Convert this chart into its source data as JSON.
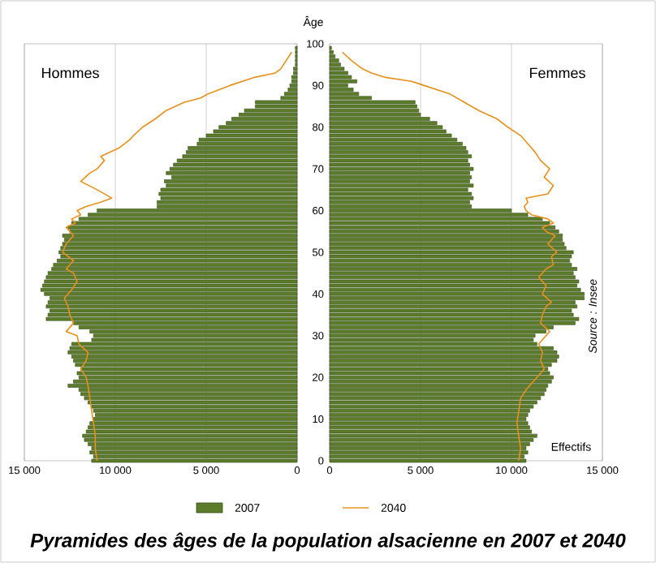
{
  "chart_data": [
    {
      "type": "bar",
      "orientation": "horizontal",
      "title": "Pyramides des âges de la population alsacienne en 2007 et 2040",
      "annotations": [
        "Hommes"
      ],
      "legend": "bottom",
      "grid": "x",
      "tick_labels": "x",
      "xlim": [
        15000,
        0
      ],
      "xticks": [
        {
          "value": 15000,
          "label": "15 000"
        },
        {
          "value": 10000,
          "label": "10 000"
        },
        {
          "value": 5000,
          "label": "5 000"
        },
        0
      ],
      "ylim": [
        0,
        100
      ],
      "yticks": [
        0,
        10,
        20,
        30,
        40,
        50,
        60,
        70,
        80,
        90,
        100
      ],
      "x": [
        0,
        1,
        2,
        3,
        4,
        5,
        6,
        7,
        8,
        9,
        10,
        11,
        12,
        13,
        14,
        15,
        16,
        17,
        18,
        19,
        20,
        21,
        22,
        23,
        24,
        25,
        26,
        27,
        28,
        29,
        30,
        31,
        32,
        33,
        34,
        35,
        36,
        37,
        38,
        39,
        40,
        41,
        42,
        43,
        44,
        45,
        46,
        47,
        48,
        49,
        50,
        51,
        52,
        53,
        54,
        55,
        56,
        57,
        58,
        59,
        60,
        61,
        62,
        63,
        64,
        65,
        66,
        67,
        68,
        69,
        70,
        71,
        72,
        73,
        74,
        75,
        76,
        77,
        78,
        79,
        80,
        81,
        82,
        83,
        84,
        85,
        86,
        87,
        88,
        89,
        90,
        91,
        92,
        93,
        94,
        95,
        96,
        97,
        98,
        99
      ],
      "series": [
        {
          "name": "2007",
          "color": "#5b7d2a",
          "values": [
            11300,
            11200,
            11400,
            11300,
            11500,
            11700,
            11800,
            11600,
            11500,
            11400,
            11200,
            11100,
            11200,
            11300,
            11500,
            11700,
            11900,
            12000,
            12600,
            12300,
            12000,
            12100,
            11900,
            12200,
            12300,
            12400,
            12600,
            12500,
            12400,
            11300,
            11200,
            11400,
            12000,
            12300,
            13800,
            13700,
            13600,
            13800,
            13700,
            13600,
            13900,
            14100,
            14000,
            13900,
            13800,
            13700,
            13500,
            13400,
            13200,
            13000,
            13100,
            13000,
            12900,
            12800,
            12900,
            12500,
            12600,
            12400,
            12000,
            11500,
            11000,
            7700,
            7700,
            7500,
            7600,
            7500,
            7200,
            7300,
            6900,
            7200,
            7000,
            6800,
            6600,
            6300,
            6100,
            6000,
            5500,
            5400,
            5000,
            4600,
            4300,
            3900,
            3600,
            3200,
            2900,
            2300,
            2300,
            900,
            700,
            500,
            400,
            300,
            300,
            200,
            200,
            100,
            100,
            100,
            100,
            100
          ]
        },
        {
          "name": "2040",
          "type": "line",
          "color": "#e8901c",
          "x": [
            0,
            3,
            6,
            9,
            12,
            15,
            18,
            20,
            22,
            24,
            26,
            28,
            30,
            31,
            33,
            35,
            37,
            39,
            41,
            43,
            45,
            46,
            48,
            50,
            52,
            54,
            56,
            57,
            58,
            59,
            60,
            61,
            62,
            63,
            65,
            67,
            69,
            70,
            72,
            73,
            75,
            76,
            77,
            78,
            80,
            82,
            84,
            86,
            87,
            88,
            90,
            92,
            93,
            94,
            96,
            98
          ],
          "values": [
            11000,
            11100,
            11100,
            11200,
            11300,
            11400,
            11500,
            11600,
            11900,
            11600,
            11500,
            12000,
            12100,
            12700,
            12300,
            12500,
            12600,
            12800,
            12400,
            12100,
            12300,
            12700,
            12300,
            12900,
            12700,
            12300,
            12700,
            12200,
            12400,
            11900,
            12100,
            11600,
            10800,
            10200,
            11000,
            11900,
            11400,
            11000,
            10600,
            10800,
            9800,
            9500,
            9200,
            9000,
            8500,
            7800,
            7200,
            6200,
            5300,
            4900,
            3700,
            2300,
            1200,
            900,
            600,
            300
          ]
        }
      ]
    },
    {
      "type": "bar",
      "orientation": "horizontal",
      "annotations": [
        "Femmes",
        "Source : Insee"
      ],
      "xlabel": "Effectifs",
      "ylabel": "Âge",
      "grid": "x",
      "xlim": [
        0,
        15000
      ],
      "xticks": [
        0,
        {
          "value": 5000,
          "label": "5 000"
        },
        {
          "value": 10000,
          "label": "10 000"
        },
        {
          "value": 15000,
          "label": "15 000"
        }
      ],
      "ylim": [
        0,
        100
      ],
      "yticks": [
        0,
        10,
        20,
        30,
        40,
        50,
        60,
        70,
        80,
        90,
        100
      ],
      "x": [
        0,
        1,
        2,
        3,
        4,
        5,
        6,
        7,
        8,
        9,
        10,
        11,
        12,
        13,
        14,
        15,
        16,
        17,
        18,
        19,
        20,
        21,
        22,
        23,
        24,
        25,
        26,
        27,
        28,
        29,
        30,
        31,
        32,
        33,
        34,
        35,
        36,
        37,
        38,
        39,
        40,
        41,
        42,
        43,
        44,
        45,
        46,
        47,
        48,
        49,
        50,
        51,
        52,
        53,
        54,
        55,
        56,
        57,
        58,
        59,
        60,
        61,
        62,
        63,
        64,
        65,
        66,
        67,
        68,
        69,
        70,
        71,
        72,
        73,
        74,
        75,
        76,
        77,
        78,
        79,
        80,
        81,
        82,
        83,
        84,
        85,
        86,
        87,
        88,
        89,
        90,
        91,
        92,
        93,
        94,
        95,
        96,
        97,
        98,
        99
      ],
      "series": [
        {
          "color": "#5b7d2a",
          "values": [
            10800,
            10700,
            10900,
            10800,
            11000,
            11200,
            11400,
            11100,
            11000,
            10900,
            10800,
            10900,
            11000,
            11200,
            11400,
            11600,
            11800,
            11900,
            12000,
            12200,
            12300,
            12100,
            12000,
            12200,
            12500,
            12600,
            12500,
            12300,
            11400,
            11200,
            11300,
            11900,
            12300,
            13500,
            13700,
            13400,
            13300,
            13600,
            13500,
            14000,
            14000,
            13800,
            13600,
            13700,
            13500,
            13400,
            13600,
            13300,
            13200,
            13300,
            13400,
            13000,
            12900,
            12800,
            12800,
            12600,
            12400,
            12100,
            11700,
            10900,
            10000,
            7800,
            7700,
            7900,
            7800,
            7600,
            7900,
            7700,
            7800,
            7700,
            7900,
            7700,
            7600,
            7800,
            7600,
            7500,
            7300,
            7000,
            6700,
            6400,
            6200,
            5900,
            5500,
            5000,
            4900,
            4800,
            4700,
            2300,
            1600,
            1300,
            1000,
            1500,
            1200,
            1000,
            800,
            600,
            500,
            300,
            200,
            100
          ]
        },
        {
          "type": "line",
          "color": "#e8901c",
          "x": [
            0,
            3,
            6,
            9,
            12,
            15,
            17,
            19,
            21,
            22,
            24,
            26,
            28,
            30,
            31,
            33,
            35,
            37,
            38,
            40,
            42,
            44,
            46,
            47,
            49,
            50,
            52,
            54,
            55,
            56,
            57,
            58,
            59,
            60,
            61,
            62,
            63,
            64,
            66,
            68,
            70,
            72,
            74,
            76,
            78,
            80,
            82,
            84,
            86,
            88,
            90,
            91,
            92,
            93,
            94,
            96,
            98
          ],
          "values": [
            10400,
            10500,
            10400,
            10300,
            10400,
            10500,
            10800,
            11200,
            11600,
            11800,
            11600,
            11700,
            11500,
            11900,
            12100,
            11600,
            11700,
            11900,
            12200,
            11700,
            11900,
            11500,
            11900,
            12300,
            12200,
            12500,
            12000,
            12400,
            11900,
            11700,
            12300,
            12000,
            11100,
            10800,
            10700,
            10900,
            10800,
            12000,
            12300,
            11800,
            12100,
            11600,
            11300,
            10900,
            10500,
            9800,
            9200,
            8200,
            7400,
            6600,
            5200,
            4500,
            3000,
            2300,
            1800,
            1200,
            700
          ]
        }
      ]
    }
  ]
}
